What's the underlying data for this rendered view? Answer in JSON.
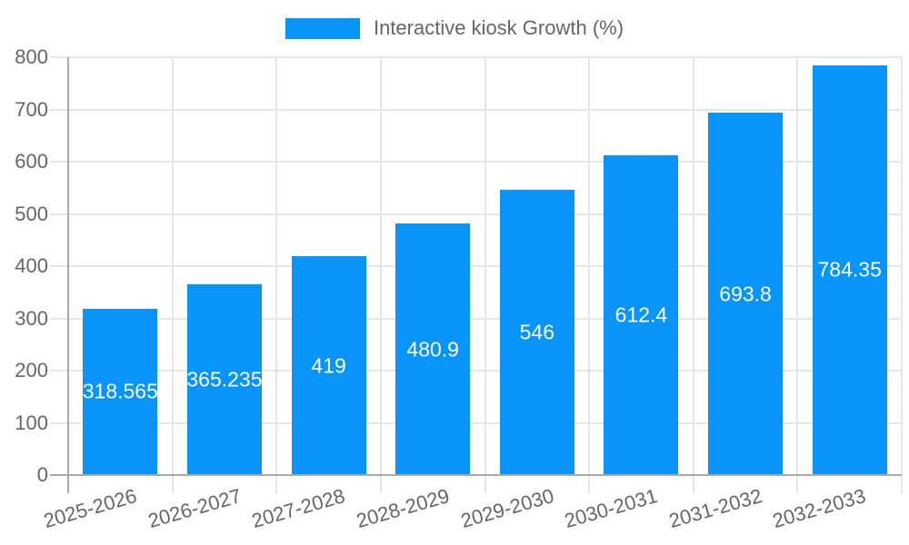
{
  "chart_data": {
    "type": "bar",
    "title": "Interactive kiosk Growth (%)",
    "categories": [
      "2025-2026",
      "2026-2027",
      "2027-2028",
      "2028-2029",
      "2029-2030",
      "2030-2031",
      "2031-2032",
      "2032-2033"
    ],
    "values": [
      318.565,
      365.235,
      419,
      480.9,
      546,
      612.4,
      693.8,
      784.35
    ],
    "value_labels": [
      "318.565",
      "365.235",
      "419",
      "480.9",
      "546",
      "612.4",
      "693.8",
      "784.35"
    ],
    "xlabel": "",
    "ylabel": "",
    "ylim": [
      0,
      800
    ],
    "yticks": [
      0,
      100,
      200,
      300,
      400,
      500,
      600,
      700,
      800
    ],
    "grid": "on",
    "legend_position": "top",
    "bar_color": "#0994fa",
    "value_label_color": "#ffffff",
    "axis_text_color": "#666666",
    "gridline_color": "#e6e6e6",
    "axis_line_color": "#a9a9a9"
  }
}
